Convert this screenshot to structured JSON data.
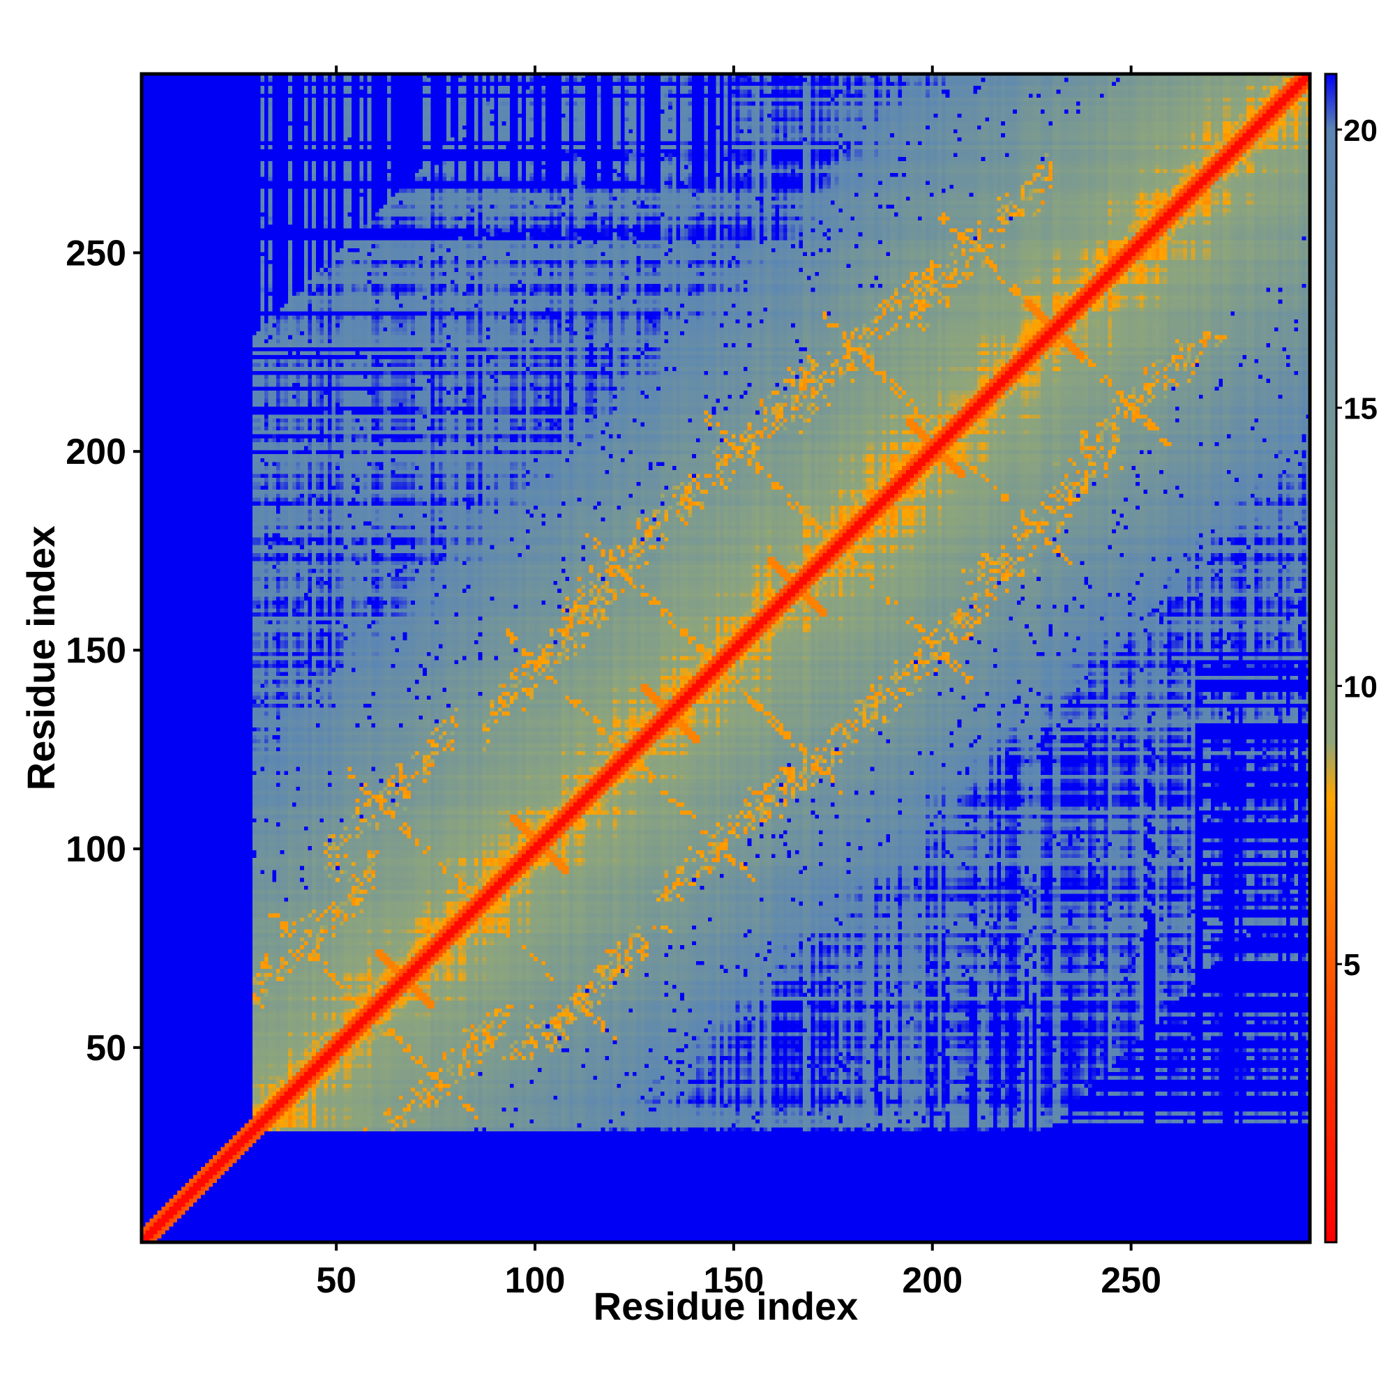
{
  "chart_data": {
    "type": "heatmap",
    "title": "",
    "xlabel": "Residue index",
    "ylabel": "Residue index",
    "xlim": [
      1,
      295
    ],
    "ylim": [
      1,
      295
    ],
    "x_ticks": [
      50,
      100,
      150,
      200,
      250
    ],
    "y_ticks": [
      50,
      100,
      150,
      200,
      250
    ],
    "n_residues": 295,
    "colorbar": {
      "range": [
        0,
        21
      ],
      "ticks": [
        5,
        10,
        15,
        20
      ],
      "stops": [
        {
          "value": 0,
          "color": "#ff0000"
        },
        {
          "value": 4,
          "color": "#ff4400"
        },
        {
          "value": 8,
          "color": "#ffa500"
        },
        {
          "value": 9,
          "color": "#8fa67a"
        },
        {
          "value": 20,
          "color": "#5b86b4"
        },
        {
          "value": 21,
          "color": "#0000f5"
        }
      ]
    },
    "secondary_structure_contacts": {
      "helix_centers": [
        66,
        100,
        133,
        165,
        200,
        230
      ],
      "strand_pairs": [
        [
          40,
          75
        ],
        [
          60,
          110
        ],
        [
          100,
          145
        ],
        [
          120,
          170
        ],
        [
          150,
          200
        ],
        [
          180,
          225
        ],
        [
          210,
          250
        ]
      ]
    },
    "cmap_colors": {
      "background": "#0000f5",
      "far": "#5b86b4",
      "mid": "#a0b47a",
      "near": "#ffa500",
      "diagonal": "#ff1a00"
    }
  }
}
